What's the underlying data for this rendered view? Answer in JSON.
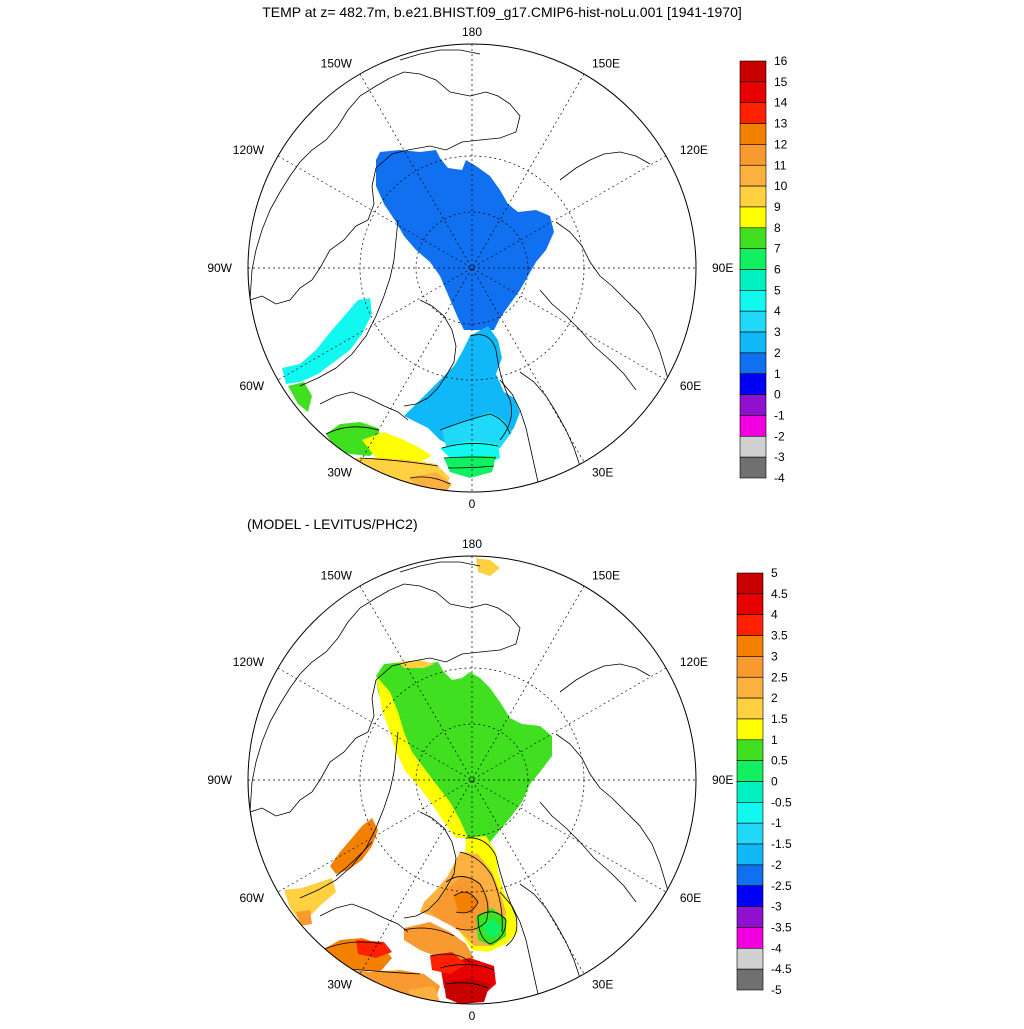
{
  "title": "TEMP at z= 482.7m, b.e21.BHIST.f09_g17.CMIP6-hist-noLu.001 [1941-1970]",
  "subtitle": "(MODEL - LEVITUS/PHC2)",
  "longitude_labels": [
    {
      "lon": 180,
      "text": "180"
    },
    {
      "lon": 150,
      "text": "150E"
    },
    {
      "lon": 120,
      "text": "120E"
    },
    {
      "lon": 90,
      "text": "90E"
    },
    {
      "lon": 60,
      "text": "60E"
    },
    {
      "lon": 30,
      "text": "30E"
    },
    {
      "lon": 0,
      "text": "0"
    },
    {
      "lon": -30,
      "text": "30W"
    },
    {
      "lon": -60,
      "text": "60W"
    },
    {
      "lon": -90,
      "text": "90W"
    },
    {
      "lon": -120,
      "text": "120W"
    },
    {
      "lon": -150,
      "text": "150W"
    }
  ],
  "colors": {
    "land_outline": "#000000",
    "grid": "#000000",
    "background": "#ffffff"
  },
  "top_colorbar": {
    "labels": [
      "16",
      "15",
      "14",
      "13",
      "12",
      "11",
      "10",
      "9",
      "8",
      "7",
      "6",
      "5",
      "4",
      "3",
      "2",
      "1",
      "0",
      "-1",
      "-2",
      "-3",
      "-4"
    ],
    "colors": [
      "#c80000",
      "#e60000",
      "#ff2000",
      "#f48000",
      "#f89a30",
      "#fbb040",
      "#ffd040",
      "#ffff00",
      "#40e020",
      "#10f060",
      "#00f0c0",
      "#10f8f0",
      "#20d8f8",
      "#10b8f8",
      "#1070f0",
      "#0000f8",
      "#9010d0",
      "#f000e0",
      "#d0d0d0",
      "#707070"
    ]
  },
  "bottom_colorbar": {
    "labels": [
      "5",
      "4.5",
      "4",
      "3.5",
      "3",
      "2.5",
      "2",
      "1.5",
      "1",
      "0.5",
      "0",
      "-0.5",
      "-1",
      "-1.5",
      "-2",
      "-2.5",
      "-3",
      "-3.5",
      "-4",
      "-4.5",
      "-5"
    ],
    "colors": [
      "#c80000",
      "#e60000",
      "#ff2000",
      "#f48000",
      "#f89a30",
      "#fbb040",
      "#ffd040",
      "#ffff00",
      "#40e020",
      "#10f060",
      "#00f0c0",
      "#10f8f0",
      "#20d8f8",
      "#10b8f8",
      "#1070f0",
      "#0000f8",
      "#9010d0",
      "#f000e0",
      "#d0d0d0",
      "#707070"
    ]
  }
}
